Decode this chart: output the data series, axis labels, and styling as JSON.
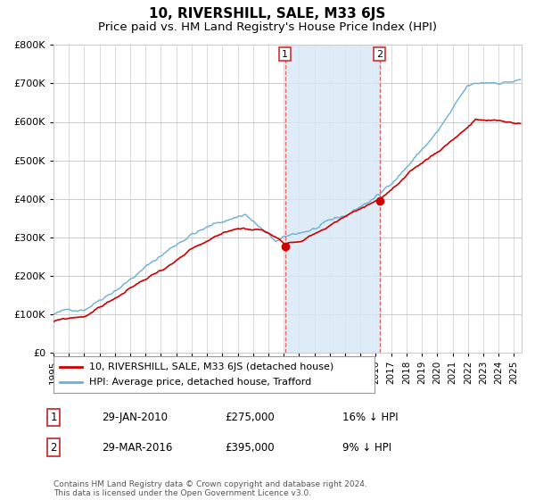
{
  "title": "10, RIVERSHILL, SALE, M33 6JS",
  "subtitle": "Price paid vs. HM Land Registry's House Price Index (HPI)",
  "ytick_values": [
    0,
    100000,
    200000,
    300000,
    400000,
    500000,
    600000,
    700000,
    800000
  ],
  "ylim": [
    0,
    800000
  ],
  "xlim_start": 1995,
  "xlim_end": 2025.5,
  "hpi_color": "#6daed4",
  "hpi_fill_color": "#d6e8f5",
  "price_color": "#cc0000",
  "dashed_line_color": "#e06060",
  "sale1_x": 2010.08,
  "sale1_price": 275000,
  "sale2_x": 2016.25,
  "sale2_price": 395000,
  "legend_line1": "10, RIVERSHILL, SALE, M33 6JS (detached house)",
  "legend_line2": "HPI: Average price, detached house, Trafford",
  "table_row1": [
    "1",
    "29-JAN-2010",
    "£275,000",
    "16% ↓ HPI"
  ],
  "table_row2": [
    "2",
    "29-MAR-2016",
    "£395,000",
    "9% ↓ HPI"
  ],
  "footnote": "Contains HM Land Registry data © Crown copyright and database right 2024.\nThis data is licensed under the Open Government Licence v3.0.",
  "background_color": "#ffffff",
  "grid_color": "#cccccc",
  "title_fontsize": 11,
  "subtitle_fontsize": 9.5
}
